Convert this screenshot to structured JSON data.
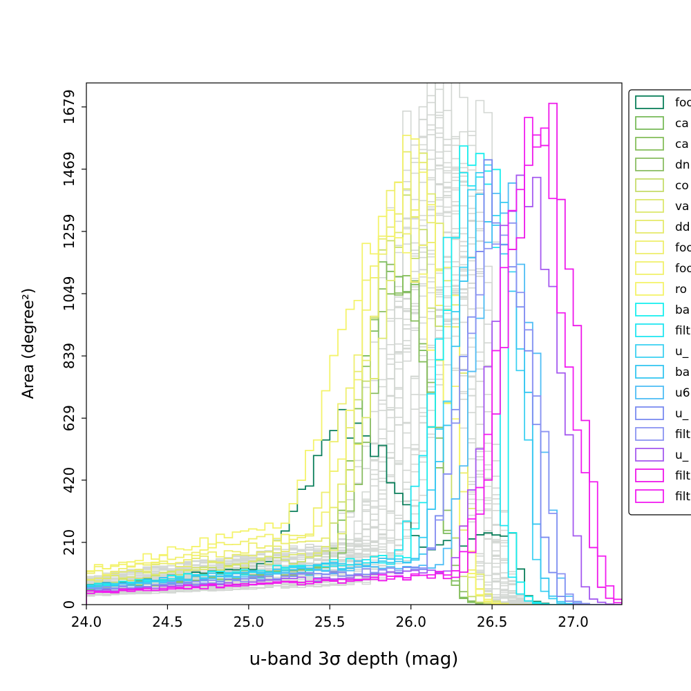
{
  "chart_data": {
    "type": "step-histogram",
    "xlabel": "u-band 3σ depth (mag)",
    "ylabel": "Area (degree²)",
    "xlim": [
      24.0,
      27.3
    ],
    "ylim": [
      0,
      1760
    ],
    "xticks": [
      24.0,
      24.5,
      25.0,
      25.5,
      26.0,
      26.5,
      27.0
    ],
    "yticks": [
      0,
      210,
      420,
      629,
      839,
      1049,
      1259,
      1469,
      1679
    ],
    "grid": false,
    "legend_position": "outside-right",
    "bin_width": 0.05,
    "background_series_count": 40,
    "background_color": "#d3d7d3",
    "series": [
      {
        "name": "foo",
        "color": "#0b7f5b",
        "mu": 25.62,
        "sigma": 0.3,
        "peak": 620,
        "low": 60,
        "cut": 26.64
      },
      {
        "name": "ca",
        "color": "#7abc5b",
        "mu": 25.92,
        "sigma": 0.21,
        "peak": 1180,
        "low": 50,
        "cut": 26.2
      },
      {
        "name": "ca",
        "color": "#86bf5c",
        "mu": 25.9,
        "sigma": 0.2,
        "peak": 1150,
        "low": 55,
        "cut": 26.2
      },
      {
        "name": "dn",
        "color": "#8abd63",
        "mu": 25.95,
        "sigma": 0.2,
        "peak": 1120,
        "low": 50,
        "cut": 26.22
      },
      {
        "name": "co",
        "color": "#c6dd6c",
        "mu": 25.96,
        "sigma": 0.24,
        "peak": 1300,
        "low": 70,
        "cut": 26.25
      },
      {
        "name": "va",
        "color": "#dde86d",
        "mu": 26.05,
        "sigma": 0.26,
        "peak": 1400,
        "low": 80,
        "cut": 26.35
      },
      {
        "name": "dd",
        "color": "#e6ea6c",
        "mu": 26.0,
        "sigma": 0.28,
        "peak": 1420,
        "low": 90,
        "cut": 26.3
      },
      {
        "name": "foo",
        "color": "#eeee6e",
        "mu": 25.95,
        "sigma": 0.3,
        "peak": 1380,
        "low": 100,
        "cut": 26.32
      },
      {
        "name": "foo",
        "color": "#f1f06c",
        "mu": 26.0,
        "sigma": 0.3,
        "peak": 1450,
        "low": 110,
        "cut": 26.32
      },
      {
        "name": "ro",
        "color": "#f4f36a",
        "mu": 25.85,
        "sigma": 0.34,
        "peak": 1300,
        "low": 120,
        "cut": 26.3
      },
      {
        "name": "ba",
        "color": "#19eeee",
        "mu": 26.42,
        "sigma": 0.2,
        "peak": 1670,
        "low": 65,
        "cut": 26.58
      },
      {
        "name": "filt",
        "color": "#22e5f0",
        "mu": 26.38,
        "sigma": 0.22,
        "peak": 1450,
        "low": 60,
        "cut": 26.55
      },
      {
        "name": "u_",
        "color": "#3ed1f2",
        "mu": 26.46,
        "sigma": 0.2,
        "peak": 1500,
        "low": 60,
        "cut": 26.72
      },
      {
        "name": "ba",
        "color": "#35c6f1",
        "mu": 26.48,
        "sigma": 0.2,
        "peak": 1420,
        "low": 62,
        "cut": 26.75
      },
      {
        "name": "u6",
        "color": "#4fbdf5",
        "mu": 26.58,
        "sigma": 0.18,
        "peak": 1400,
        "low": 55,
        "cut": 26.85
      },
      {
        "name": "u_",
        "color": "#7a8af0",
        "mu": 26.52,
        "sigma": 0.2,
        "peak": 1400,
        "low": 50,
        "cut": 26.8
      },
      {
        "name": "filt",
        "color": "#8b93f2",
        "mu": 26.55,
        "sigma": 0.21,
        "peak": 1350,
        "low": 50,
        "cut": 26.85
      },
      {
        "name": "u_",
        "color": "#a559ef",
        "mu": 26.7,
        "sigma": 0.2,
        "peak": 1500,
        "low": 45,
        "cut": 26.98
      },
      {
        "name": "filt",
        "color": "#ee17ea",
        "mu": 26.8,
        "sigma": 0.2,
        "peak": 1660,
        "low": 40,
        "cut": 27.08
      },
      {
        "name": "filt",
        "color": "#f21cf0",
        "mu": 26.75,
        "sigma": 0.2,
        "peak": 1600,
        "low": 42,
        "cut": 27.12
      }
    ]
  }
}
